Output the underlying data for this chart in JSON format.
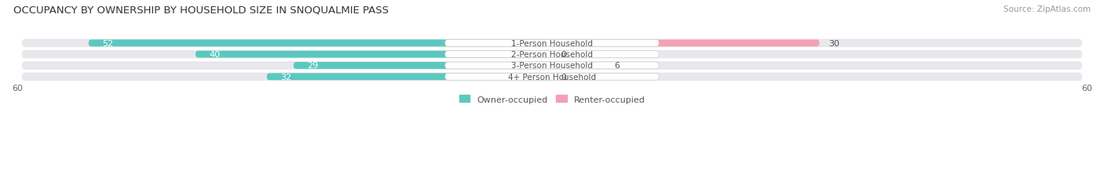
{
  "title": "OCCUPANCY BY OWNERSHIP BY HOUSEHOLD SIZE IN SNOQUALMIE PASS",
  "source": "Source: ZipAtlas.com",
  "categories": [
    "1-Person Household",
    "2-Person Household",
    "3-Person Household",
    "4+ Person Household"
  ],
  "owner_values": [
    52,
    40,
    29,
    32
  ],
  "renter_values": [
    30,
    0,
    6,
    0
  ],
  "owner_color": "#5BC8C0",
  "renter_color": "#F4A0B5",
  "axis_max": 60,
  "bar_bg_color": "#E8E8EC",
  "legend_owner": "Owner-occupied",
  "legend_renter": "Renter-occupied",
  "title_fontsize": 9.5,
  "source_fontsize": 7.5,
  "bar_label_fontsize": 8,
  "axis_label_fontsize": 8,
  "legend_fontsize": 8,
  "category_fontsize": 7.5
}
